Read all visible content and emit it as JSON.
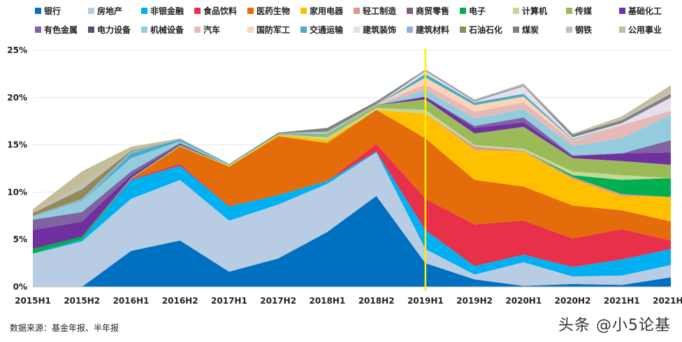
{
  "chart_data": {
    "type": "area",
    "stacked": true,
    "title": "",
    "xlabel": "",
    "ylabel": "",
    "ylim": [
      0,
      25
    ],
    "yticks": [
      "0%",
      "5%",
      "10%",
      "15%",
      "20%",
      "25%"
    ],
    "categories": [
      "2015H1",
      "2015H2",
      "2016H1",
      "2016H2",
      "2017H1",
      "2017H2",
      "2018H1",
      "2018H2",
      "2019H1",
      "2019H2",
      "2020H1",
      "2020H2",
      "2021H1",
      "2021H2"
    ],
    "marker_line": {
      "category": "2019H1",
      "color": "#ffee00"
    },
    "legend_position": "top",
    "series": [
      {
        "name": "银行",
        "color": "#0070c0",
        "values": [
          0,
          0,
          3.8,
          4.9,
          1.6,
          3.0,
          5.8,
          9.6,
          2.5,
          0.8,
          0.1,
          0.3,
          0.2,
          1.0
        ]
      },
      {
        "name": "房地产",
        "color": "#b8cce4",
        "values": [
          3.5,
          4.8,
          5.5,
          6.4,
          5.4,
          5.7,
          5.1,
          4.6,
          1.5,
          0.5,
          2.5,
          0.8,
          1.0,
          1.3
        ]
      },
      {
        "name": "非银金融",
        "color": "#00b0f0",
        "values": [
          0,
          0.2,
          2.0,
          1.5,
          1.5,
          1.0,
          0.3,
          0.1,
          2.0,
          0.9,
          0.8,
          1.0,
          1.7,
          1.7
        ]
      },
      {
        "name": "食品饮料",
        "color": "#e8304a",
        "values": [
          0,
          0,
          0.1,
          0.2,
          0,
          0,
          0,
          0.8,
          3.3,
          4.4,
          3.6,
          3.0,
          3.2,
          0.9
        ]
      },
      {
        "name": "医药生物",
        "color": "#e46c0a",
        "values": [
          0,
          0,
          0,
          1.8,
          4.2,
          6.2,
          4.0,
          3.6,
          6.4,
          4.7,
          3.6,
          3.5,
          2.0,
          2.0
        ]
      },
      {
        "name": "家用电器",
        "color": "#ffc000",
        "values": [
          0,
          0,
          0,
          0,
          0.1,
          0.2,
          0.3,
          0,
          2.6,
          3.2,
          3.7,
          2.8,
          1.5,
          2.6
        ]
      },
      {
        "name": "轻工制造",
        "color": "#d99694",
        "values": [
          0,
          0,
          0,
          0,
          0,
          0,
          0,
          0,
          0,
          0.3,
          0.1,
          0.2,
          0.2,
          0
        ]
      },
      {
        "name": "商贸零售",
        "color": "#7f6084",
        "values": [
          0,
          0,
          0,
          0,
          0,
          0,
          0,
          0,
          0,
          0,
          0,
          0,
          0,
          0
        ]
      },
      {
        "name": "电子",
        "color": "#00b050",
        "values": [
          0.5,
          0.3,
          0,
          0,
          0,
          0,
          0,
          0,
          0,
          0,
          0,
          0.2,
          1.5,
          2.0
        ]
      },
      {
        "name": "计算机",
        "color": "#c4d79b",
        "values": [
          0,
          0,
          0,
          0,
          0,
          0,
          0.3,
          0.2,
          0.4,
          0.2,
          0.2,
          0.4,
          0.5,
          0
        ]
      },
      {
        "name": "传媒",
        "color": "#9bbb59",
        "values": [
          0,
          0,
          0.1,
          0.2,
          0,
          0,
          0.3,
          0.3,
          1.1,
          1.2,
          2.3,
          1.4,
          1.5,
          1.4
        ]
      },
      {
        "name": "基础化工",
        "color": "#7030a0",
        "values": [
          2.0,
          1.6,
          0.3,
          0.1,
          0,
          0,
          0,
          0,
          0.3,
          0.6,
          0.5,
          0.2,
          0.8,
          1.3
        ]
      },
      {
        "name": "有色金属",
        "color": "#8064a2",
        "values": [
          1.1,
          1.0,
          0.4,
          0.1,
          0,
          0,
          0,
          0,
          0,
          0.2,
          0.5,
          0.1,
          0,
          1.3
        ]
      },
      {
        "name": "电力设备",
        "color": "#604a7b",
        "values": [
          0,
          0,
          0,
          0,
          0,
          0,
          0,
          0,
          0,
          0,
          0,
          0,
          0,
          0
        ]
      },
      {
        "name": "机械设备",
        "color": "#93cddd",
        "values": [
          0.3,
          1.1,
          1.4,
          0.2,
          0.1,
          0,
          0,
          0,
          0.7,
          0.8,
          0.9,
          1.0,
          1.6,
          2.7
        ]
      },
      {
        "name": "汽车",
        "color": "#e6b9b8",
        "values": [
          0,
          0,
          0,
          0,
          0,
          0,
          0,
          0,
          0.6,
          0.7,
          0.7,
          0.5,
          1.4,
          0.4
        ]
      },
      {
        "name": "国防军工",
        "color": "#fcd5b5",
        "values": [
          0,
          0,
          0,
          0,
          0,
          0,
          0,
          0,
          0.7,
          0.7,
          0.6,
          0.1,
          0,
          0
        ]
      },
      {
        "name": "交通运输",
        "color": "#4bacc6",
        "values": [
          0,
          0,
          0.5,
          0.2,
          0.1,
          0.1,
          0.1,
          0,
          0.4,
          0.3,
          0.3,
          0.1,
          0,
          0
        ]
      },
      {
        "name": "建筑装饰",
        "color": "#e4dfec",
        "values": [
          0,
          0,
          0,
          0,
          0,
          0,
          0.1,
          0,
          0.3,
          0.1,
          0.8,
          0.2,
          0.2,
          1.4
        ]
      },
      {
        "name": "建筑材料",
        "color": "#95b3d7",
        "values": [
          0.1,
          0.3,
          0.2,
          0,
          0,
          0,
          0.1,
          0.1,
          0,
          0,
          0,
          0,
          0,
          0
        ]
      },
      {
        "name": "石油石化",
        "color": "#948a54",
        "values": [
          0.3,
          1.0,
          0.1,
          0,
          0,
          0,
          0.1,
          0.1,
          0,
          0,
          0,
          0,
          0,
          0
        ]
      },
      {
        "name": "煤炭",
        "color": "#7f7f7f",
        "values": [
          0,
          0,
          0,
          0,
          0,
          0.1,
          0.3,
          0.2,
          0.1,
          0.1,
          0.1,
          0.3,
          0.3,
          0.4
        ]
      },
      {
        "name": "钢铁",
        "color": "#bfbfbf",
        "values": [
          0,
          0.5,
          0.1,
          0,
          0,
          0,
          0,
          0,
          0.1,
          0.1,
          0.2,
          0.1,
          0.2,
          0.3
        ]
      },
      {
        "name": "公用事业",
        "color": "#c4bd97",
        "values": [
          0.4,
          1.4,
          0.3,
          0.1,
          0,
          0,
          0,
          0,
          0,
          0,
          0,
          0,
          0.2,
          0.6
        ]
      }
    ]
  },
  "footer": {
    "source": "数据来源：基金年报、半年报",
    "watermark": "头条 @小5论基"
  }
}
